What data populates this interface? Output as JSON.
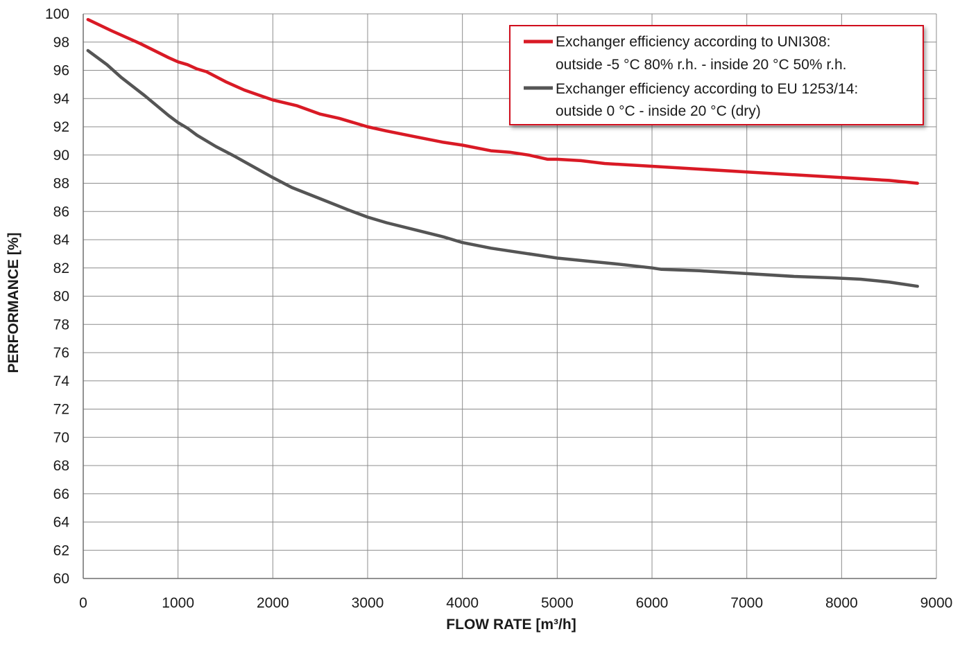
{
  "chart_data": {
    "type": "line",
    "xlabel": "FLOW RATE [m³/h]",
    "ylabel": "PERFORMANCE [%]",
    "xlim": [
      0,
      9000
    ],
    "ylim": [
      60,
      100
    ],
    "x_ticks": [
      0,
      1000,
      2000,
      3000,
      4000,
      5000,
      6000,
      7000,
      8000,
      9000
    ],
    "y_ticks": [
      60,
      62,
      64,
      66,
      68,
      70,
      72,
      74,
      76,
      78,
      80,
      82,
      84,
      86,
      88,
      90,
      92,
      94,
      96,
      98,
      100
    ],
    "grid": true,
    "legend_position": "top-right",
    "legend_border_color": "#d0101a",
    "series": [
      {
        "name_lines": [
          "Exchanger efficiency according to UNI308:",
          "outside -5 °C 80% r.h. - inside 20 °C 50% r.h."
        ],
        "color": "#d91a25",
        "x": [
          50,
          300,
          600,
          900,
          1000,
          1100,
          1200,
          1300,
          1500,
          1700,
          2000,
          2250,
          2500,
          2700,
          3000,
          3200,
          3500,
          3800,
          4000,
          4300,
          4500,
          4700,
          4900,
          5000,
          5250,
          5500,
          5750,
          6000,
          6500,
          7000,
          7500,
          8000,
          8500,
          8800
        ],
        "y": [
          99.6,
          98.8,
          97.9,
          96.9,
          96.6,
          96.4,
          96.1,
          95.9,
          95.2,
          94.6,
          93.9,
          93.5,
          92.9,
          92.6,
          92.0,
          91.7,
          91.3,
          90.9,
          90.7,
          90.3,
          90.2,
          90.0,
          89.7,
          89.7,
          89.6,
          89.4,
          89.3,
          89.2,
          89.0,
          88.8,
          88.6,
          88.4,
          88.2,
          88.0
        ]
      },
      {
        "name_lines": [
          "Exchanger efficiency according to EU 1253/14:",
          "outside 0 °C - inside 20 °C (dry)"
        ],
        "color": "#555555",
        "x": [
          50,
          250,
          400,
          650,
          900,
          1000,
          1100,
          1200,
          1400,
          1600,
          2000,
          2200,
          2500,
          2800,
          3000,
          3200,
          3500,
          3800,
          4000,
          4300,
          4500,
          4800,
          5000,
          5300,
          5600,
          6000,
          6100,
          6500,
          7000,
          7500,
          7900,
          8200,
          8500,
          8800
        ],
        "y": [
          97.4,
          96.4,
          95.5,
          94.2,
          92.8,
          92.3,
          91.9,
          91.4,
          90.6,
          89.9,
          88.4,
          87.7,
          86.9,
          86.1,
          85.6,
          85.2,
          84.7,
          84.2,
          83.8,
          83.4,
          83.2,
          82.9,
          82.7,
          82.5,
          82.3,
          82.0,
          81.9,
          81.8,
          81.6,
          81.4,
          81.3,
          81.2,
          81.0,
          80.7
        ]
      }
    ]
  }
}
